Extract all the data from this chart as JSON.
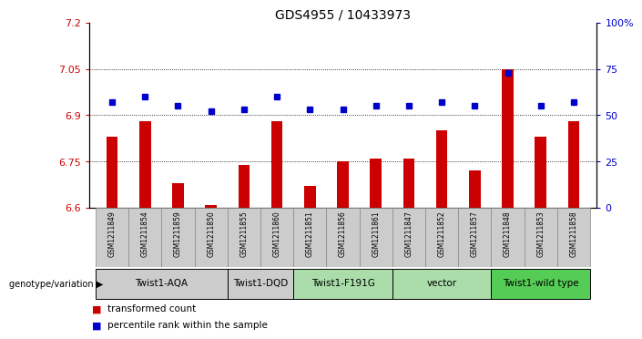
{
  "title": "GDS4955 / 10433973",
  "samples": [
    "GSM1211849",
    "GSM1211854",
    "GSM1211859",
    "GSM1211850",
    "GSM1211855",
    "GSM1211860",
    "GSM1211851",
    "GSM1211856",
    "GSM1211861",
    "GSM1211847",
    "GSM1211852",
    "GSM1211857",
    "GSM1211848",
    "GSM1211853",
    "GSM1211858"
  ],
  "bar_values": [
    6.83,
    6.88,
    6.68,
    6.61,
    6.74,
    6.88,
    6.67,
    6.75,
    6.76,
    6.76,
    6.85,
    6.72,
    7.05,
    6.83,
    6.88
  ],
  "percentile_values": [
    57,
    60,
    55,
    52,
    53,
    60,
    53,
    53,
    55,
    55,
    57,
    55,
    73,
    55,
    57
  ],
  "ylim_left": [
    6.6,
    7.2
  ],
  "ylim_right": [
    0,
    100
  ],
  "yticks_left": [
    6.6,
    6.75,
    6.9,
    7.05,
    7.2
  ],
  "ytick_labels_left": [
    "6.6",
    "6.75",
    "6.9",
    "7.05",
    "7.2"
  ],
  "yticks_right": [
    0,
    25,
    50,
    75,
    100
  ],
  "ytick_labels_right": [
    "0",
    "25",
    "50",
    "75",
    "100%"
  ],
  "hlines": [
    6.75,
    6.9,
    7.05
  ],
  "groups": [
    {
      "label": "Twist1-AQA",
      "indices": [
        0,
        1,
        2,
        3
      ],
      "color": "#cccccc"
    },
    {
      "label": "Twist1-DQD",
      "indices": [
        4,
        5
      ],
      "color": "#cccccc"
    },
    {
      "label": "Twist1-F191G",
      "indices": [
        6,
        7,
        8
      ],
      "color": "#aaddaa"
    },
    {
      "label": "vector",
      "indices": [
        9,
        10,
        11
      ],
      "color": "#aaddaa"
    },
    {
      "label": "Twist1-wild type",
      "indices": [
        12,
        13,
        14
      ],
      "color": "#55cc55"
    }
  ],
  "sample_cell_color": "#cccccc",
  "sample_cell_edge": "#888888",
  "bar_color": "#cc0000",
  "percentile_color": "#0000cc",
  "bar_bottom": 6.6,
  "bar_width": 0.35,
  "genotype_label": "genotype/variation",
  "legend_bar_label": "transformed count",
  "legend_pct_label": "percentile rank within the sample",
  "title_fontsize": 10,
  "axis_label_color_left": "#cc0000",
  "axis_label_color_right": "#0000cc"
}
